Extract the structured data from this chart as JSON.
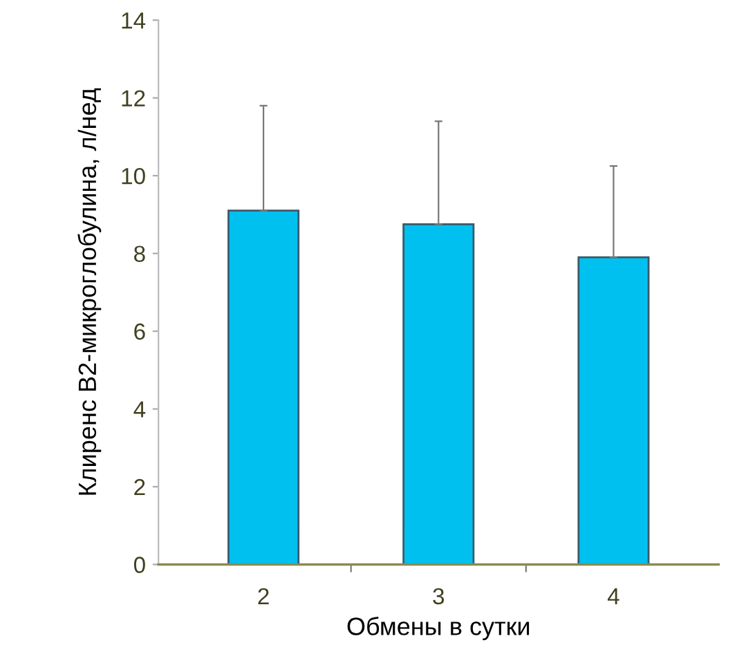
{
  "chart_data": {
    "type": "bar",
    "xlabel": "Обмены в сутки",
    "ylabel": "Клиренс В2-микроглобулина, л/нед",
    "categories": [
      "2",
      "3",
      "4"
    ],
    "series": [
      {
        "color": "#00c0f0",
        "values": [
          9.1,
          8.75,
          7.9
        ],
        "errors": [
          [
            9.1,
            11.8
          ],
          [
            8.75,
            11.4
          ],
          [
            7.9,
            10.25
          ]
        ]
      }
    ],
    "ylim": [
      0,
      14
    ],
    "yticks": [
      0,
      2,
      4,
      6,
      8,
      10,
      12,
      14
    ],
    "grid": false,
    "legend": false
  }
}
